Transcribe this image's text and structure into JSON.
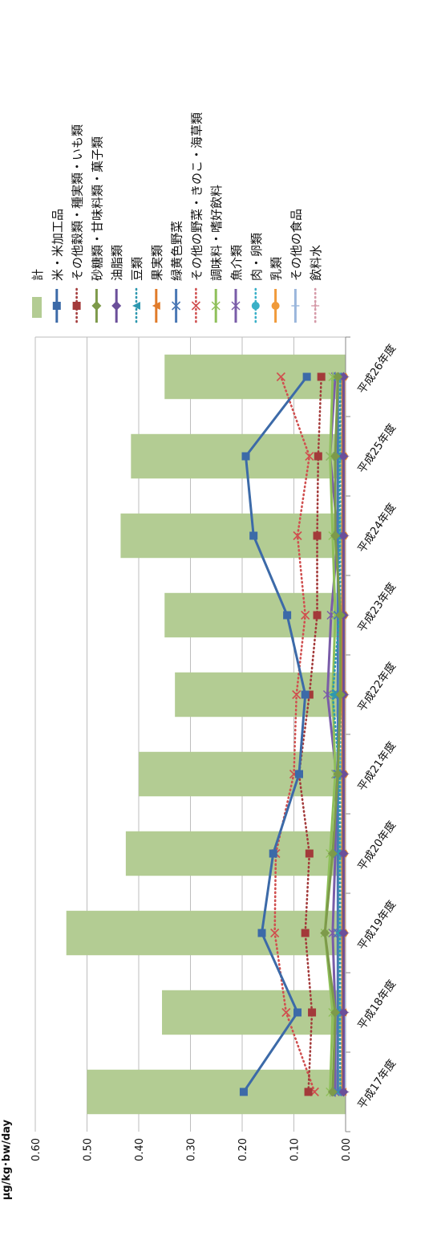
{
  "chart_data": {
    "type": "bar+line",
    "orientation": "rotated-90-ccw",
    "ylabel": "µg/kg･bw/day",
    "ylim": [
      0,
      0.6
    ],
    "yticks": [
      "0.60",
      "0.50",
      "0.40",
      "0.30",
      "0.20",
      "0.10",
      "0.00"
    ],
    "categories": [
      "平成17年度",
      "平成18年度",
      "平成19年度",
      "平成20年度",
      "平成21年度",
      "平成22年度",
      "平成23年度",
      "平成24年度",
      "平成25年度",
      "平成26年度"
    ],
    "grid": true,
    "legend_position": "right",
    "series": [
      {
        "name": "計",
        "kind": "bar",
        "color": "#b3cc93",
        "values": [
          0.5,
          0.355,
          0.54,
          0.425,
          0.4,
          0.33,
          0.35,
          0.435,
          0.415,
          0.35
        ]
      },
      {
        "name": "米・米加工品",
        "kind": "line",
        "style": "solid",
        "marker": "square",
        "color": "#3c6aa8",
        "values": [
          0.197,
          0.093,
          0.162,
          0.14,
          0.09,
          0.078,
          0.113,
          0.178,
          0.193,
          0.075
        ]
      },
      {
        "name": "その他穀類・種実類・いも類",
        "kind": "line",
        "style": "dotted",
        "marker": "square",
        "color": "#a33a3a",
        "values": [
          0.072,
          0.065,
          0.078,
          0.07,
          0.09,
          0.07,
          0.055,
          0.055,
          0.053,
          0.047
        ]
      },
      {
        "name": "砂糖類・甘味料類・菓子類",
        "kind": "line",
        "style": "solid",
        "marker": "diamond",
        "color": "#7d9a4a",
        "values": [
          0.025,
          0.02,
          0.04,
          0.025,
          0.015,
          0.01,
          0.01,
          0.02,
          0.02,
          0.015
        ]
      },
      {
        "name": "油脂類",
        "kind": "line",
        "style": "solid",
        "marker": "diamond",
        "color": "#6b4f9a",
        "values": [
          0.004,
          0.004,
          0.004,
          0.004,
          0.004,
          0.004,
          0.004,
          0.004,
          0.004,
          0.004
        ]
      },
      {
        "name": "豆類",
        "kind": "line",
        "style": "dotted",
        "marker": "triangle",
        "color": "#2e98b0",
        "values": [
          0.01,
          0.012,
          0.012,
          0.012,
          0.012,
          0.025,
          0.012,
          0.012,
          0.012,
          0.01
        ]
      },
      {
        "name": "果実類",
        "kind": "line",
        "style": "solid",
        "marker": "triangle",
        "color": "#e07b2a",
        "values": [
          0.006,
          0.006,
          0.006,
          0.006,
          0.006,
          0.006,
          0.006,
          0.006,
          0.006,
          0.006
        ]
      },
      {
        "name": "緑黄色野菜",
        "kind": "line",
        "style": "solid",
        "marker": "x",
        "color": "#4a78b5",
        "values": [
          0.015,
          0.015,
          0.015,
          0.015,
          0.015,
          0.015,
          0.015,
          0.015,
          0.015,
          0.015
        ]
      },
      {
        "name": "その他の野菜・きのこ・海草類",
        "kind": "line",
        "style": "dotted",
        "marker": "x",
        "color": "#d04f4f",
        "values": [
          0.06,
          0.115,
          0.137,
          0.135,
          0.1,
          0.095,
          0.078,
          0.093,
          0.07,
          0.125
        ]
      },
      {
        "name": "調味料・嗜好飲料",
        "kind": "line",
        "style": "solid",
        "marker": "asterisk",
        "color": "#8fc05a",
        "values": [
          0.03,
          0.025,
          0.04,
          0.03,
          0.02,
          0.025,
          0.02,
          0.025,
          0.03,
          0.025
        ]
      },
      {
        "name": "魚介類",
        "kind": "line",
        "style": "solid",
        "marker": "asterisk",
        "color": "#7a5ca8",
        "values": [
          0.02,
          0.02,
          0.025,
          0.02,
          0.018,
          0.035,
          0.028,
          0.015,
          0.03,
          0.02
        ]
      },
      {
        "name": "肉・卵類",
        "kind": "line",
        "style": "dotted",
        "marker": "circle",
        "color": "#3ab0c8",
        "values": [
          0.01,
          0.01,
          0.01,
          0.01,
          0.01,
          0.01,
          0.01,
          0.01,
          0.01,
          0.01
        ]
      },
      {
        "name": "乳類",
        "kind": "line",
        "style": "solid",
        "marker": "circle",
        "color": "#f09a3a",
        "values": [
          0.005,
          0.004,
          0.003,
          0.003,
          0.003,
          0.003,
          0.003,
          0.003,
          0.003,
          0.003
        ]
      },
      {
        "name": "その他の食品",
        "kind": "line",
        "style": "solid",
        "marker": "plus",
        "color": "#9ab6dc",
        "values": [
          0.002,
          0.002,
          0.002,
          0.002,
          0.002,
          0.002,
          0.002,
          0.002,
          0.002,
          0.002
        ]
      },
      {
        "name": "飲料水",
        "kind": "line",
        "style": "dotted",
        "marker": "plus",
        "color": "#d59aa8",
        "values": [
          0.001,
          0.001,
          0.001,
          0.001,
          0.001,
          0.001,
          0.001,
          0.001,
          0.001,
          0.001
        ]
      }
    ]
  }
}
